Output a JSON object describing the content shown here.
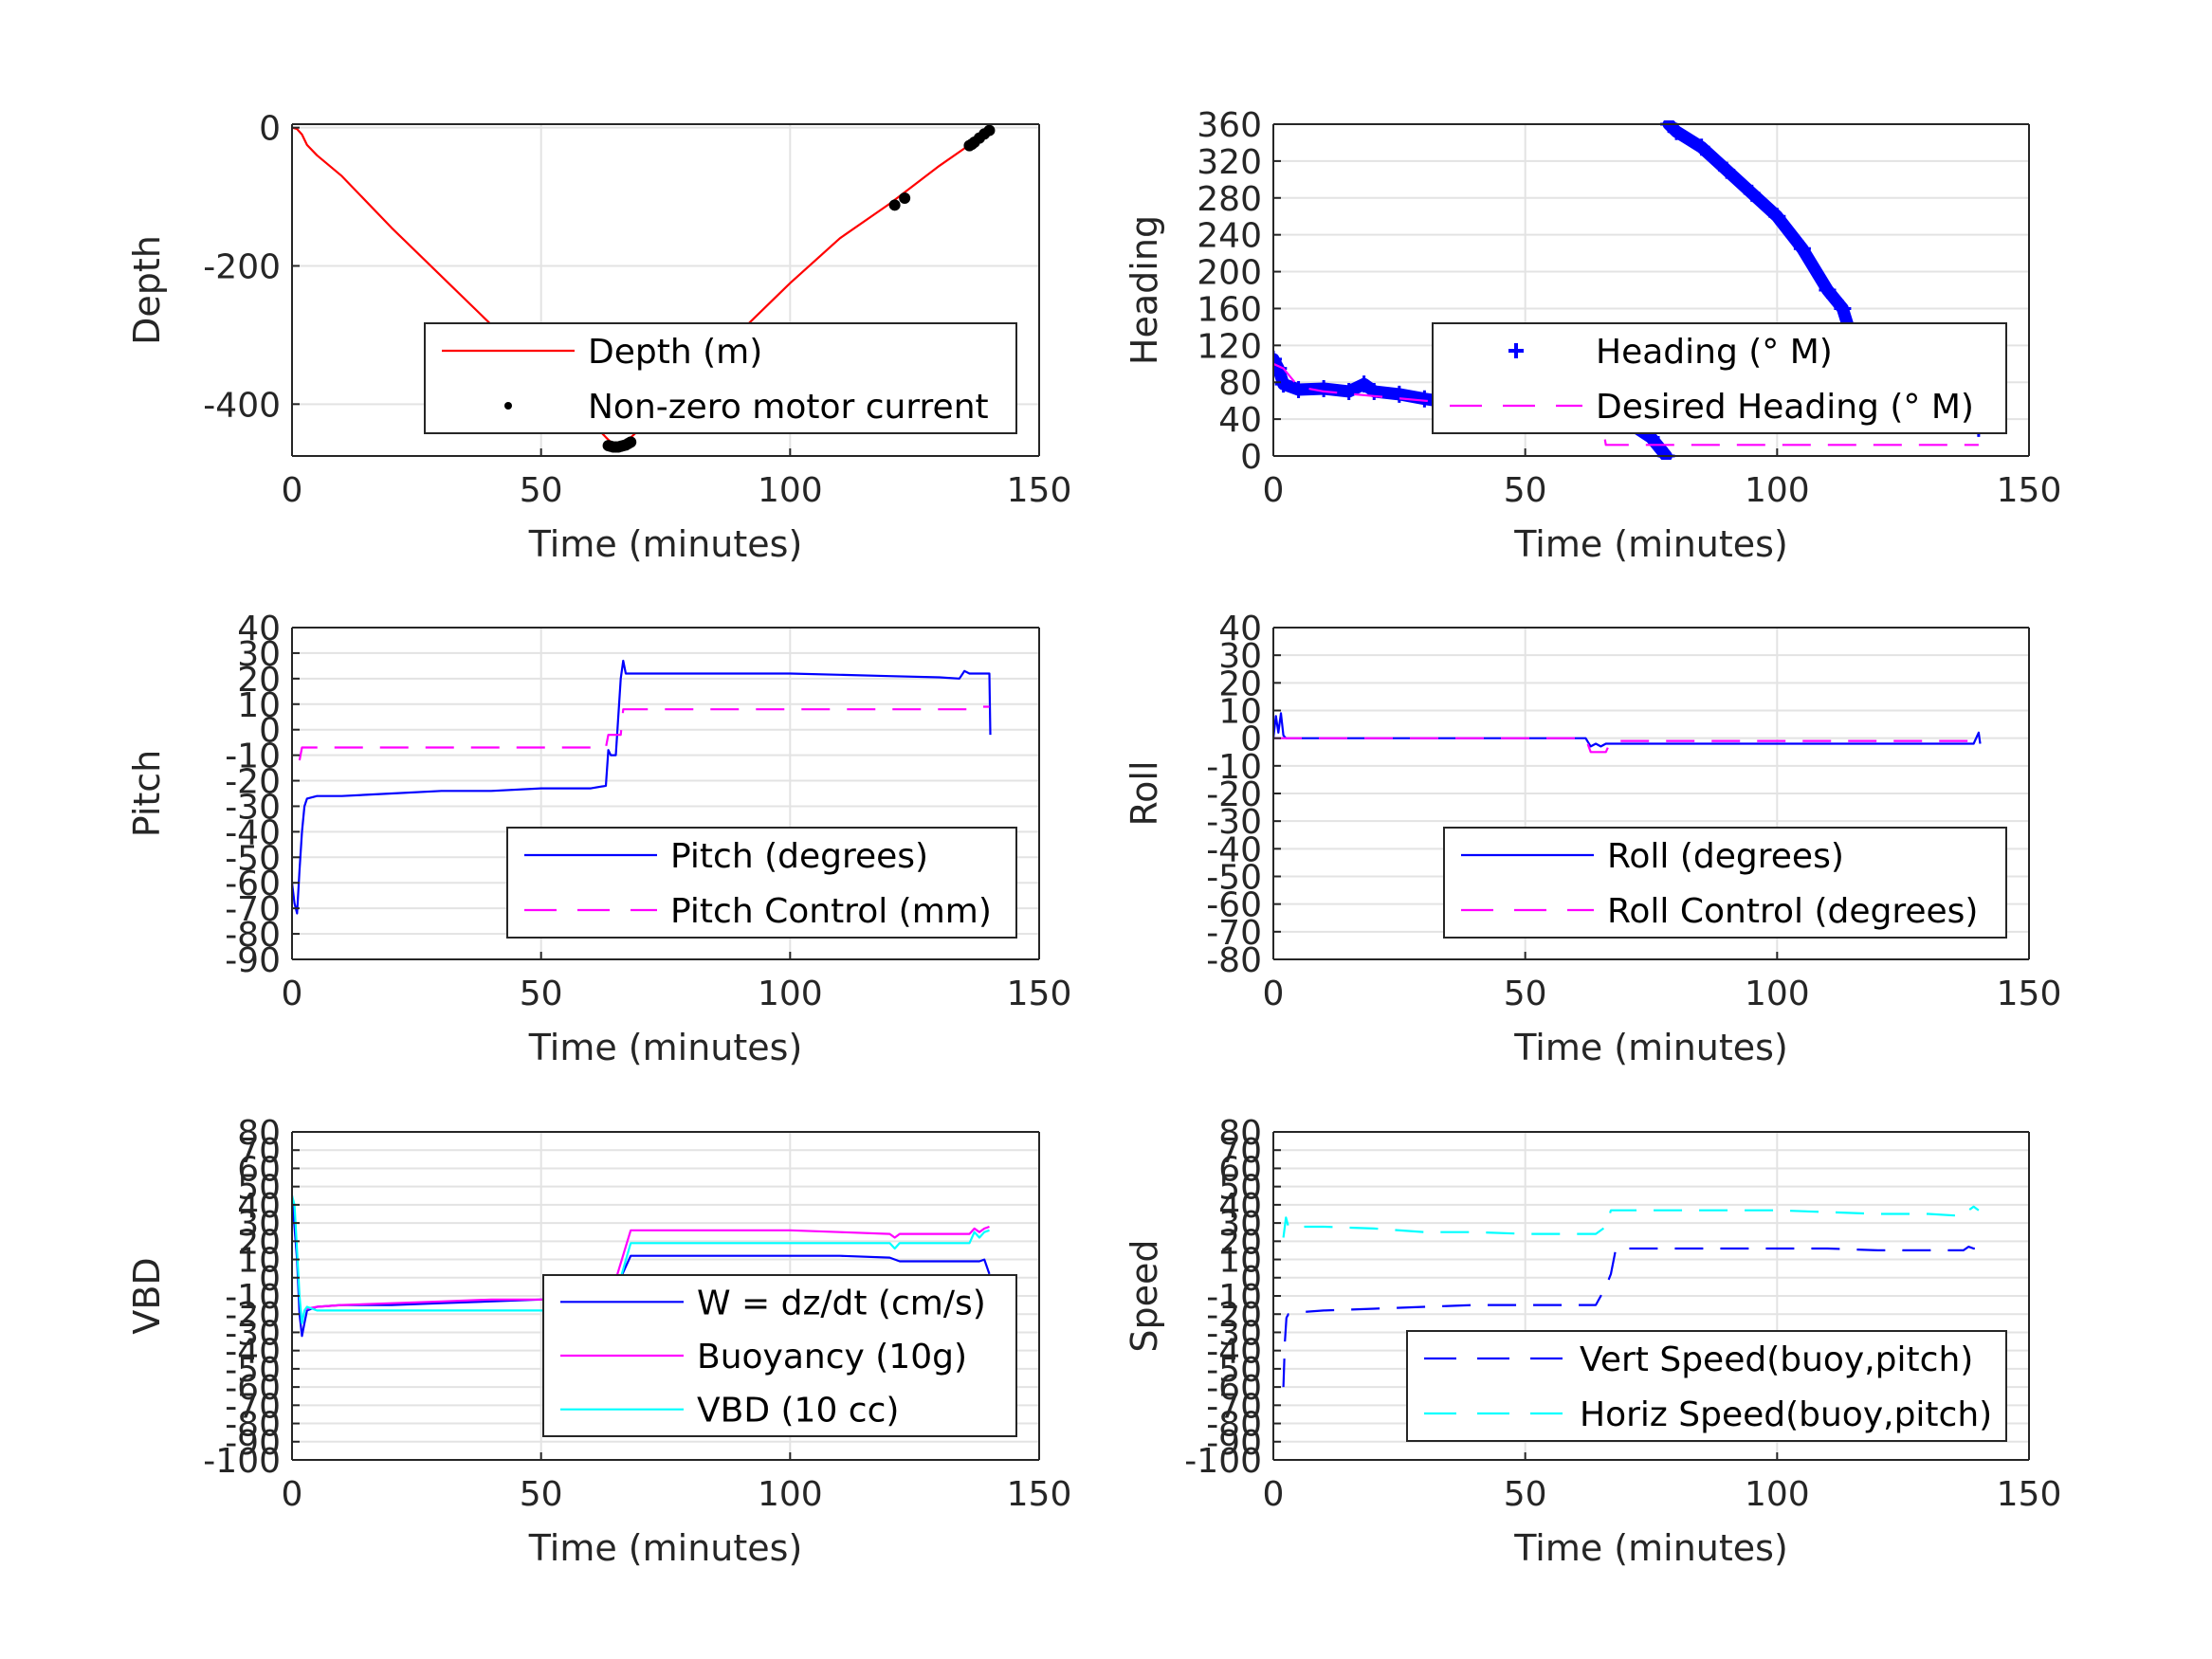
{
  "chart_data": [
    {
      "type": "line",
      "xlabel": "Time (minutes)",
      "ylabel": "Depth",
      "xlim": [
        0,
        150
      ],
      "ylim": [
        -475,
        5
      ],
      "xticks": [
        0,
        50,
        100,
        150
      ],
      "yticks": [
        -400,
        -200,
        0
      ],
      "ytick_labels": [
        "-400",
        "-200",
        "0"
      ],
      "grid": true,
      "legend": "bottom-right",
      "series": [
        {
          "name": "Depth (m)",
          "color": "#ff0000",
          "style": "solid",
          "x": [
            0,
            1,
            2,
            3,
            5,
            10,
            20,
            30,
            40,
            50,
            60,
            63,
            65,
            67,
            70,
            80,
            90,
            100,
            110,
            120,
            130,
            135,
            140
          ],
          "y": [
            0,
            -2,
            -10,
            -25,
            -40,
            -70,
            -145,
            -215,
            -285,
            -355,
            -425,
            -448,
            -462,
            -455,
            -435,
            -365,
            -295,
            -225,
            -160,
            -110,
            -55,
            -30,
            0
          ]
        },
        {
          "name": "Non-zero motor current",
          "color": "#000000",
          "style": "dots",
          "x": [
            63.5,
            64,
            64.5,
            65,
            65.5,
            66,
            66.5,
            67,
            67.5,
            68,
            121,
            123,
            136,
            136.5,
            137,
            138,
            139,
            140
          ],
          "y": [
            -460,
            -461,
            -462,
            -462,
            -462,
            -461,
            -460,
            -459,
            -457,
            -455,
            -112,
            -102,
            -26,
            -24,
            -21,
            -15,
            -9,
            -4
          ]
        }
      ]
    },
    {
      "type": "line",
      "xlabel": "Time (minutes)",
      "ylabel": "Heading",
      "xlim": [
        0,
        150
      ],
      "ylim": [
        0,
        360
      ],
      "xticks": [
        0,
        50,
        100,
        150
      ],
      "yticks": [
        0,
        40,
        80,
        120,
        160,
        200,
        240,
        280,
        320,
        360
      ],
      "ytick_labels": [
        "0",
        "40",
        "80",
        "120",
        "160",
        "200",
        "240",
        "280",
        "320",
        "360"
      ],
      "grid": true,
      "legend": "bottom-right",
      "series": [
        {
          "name": "Heading (° M)",
          "color": "#0000ff",
          "style": "plus",
          "x": [
            0,
            1,
            2,
            5,
            10,
            15,
            18,
            20,
            25,
            30,
            35,
            40,
            45,
            50,
            55,
            60,
            65,
            70,
            75,
            78,
            78.5,
            80,
            85,
            90,
            95,
            100,
            105,
            110,
            113,
            115,
            120,
            125,
            130,
            135,
            138,
            140
          ],
          "y": [
            105,
            95,
            78,
            72,
            73,
            70,
            78,
            70,
            67,
            62,
            58,
            54,
            52,
            50,
            46,
            48,
            44,
            38,
            20,
            0,
            360,
            352,
            335,
            310,
            285,
            260,
            225,
            180,
            160,
            125,
            108,
            95,
            80,
            55,
            35,
            30
          ]
        },
        {
          "name": "Desired Heading (° M)",
          "color": "#ff00ff",
          "style": "dashed",
          "x": [
            0,
            2,
            5,
            10,
            20,
            30,
            40,
            50,
            60,
            65,
            66,
            70,
            80,
            100,
            120,
            140
          ],
          "y": [
            100,
            95,
            75,
            70,
            65,
            60,
            55,
            55,
            50,
            45,
            12,
            12,
            12,
            12,
            12,
            12
          ]
        }
      ]
    },
    {
      "type": "line",
      "xlabel": "Time (minutes)",
      "ylabel": "Pitch",
      "xlim": [
        0,
        150
      ],
      "ylim": [
        -90,
        40
      ],
      "xticks": [
        0,
        50,
        100,
        150
      ],
      "yticks": [
        -90,
        -80,
        -70,
        -60,
        -50,
        -40,
        -30,
        -20,
        -10,
        0,
        10,
        20,
        30,
        40
      ],
      "ytick_labels": [
        "-90",
        "-80",
        "-70",
        "-60",
        "-50",
        "-40",
        "-30",
        "-20",
        "-10",
        "0",
        "10",
        "20",
        "30",
        "40"
      ],
      "grid": true,
      "legend": "bottom-right",
      "series": [
        {
          "name": "Pitch (degrees)",
          "color": "#0000ff",
          "style": "solid",
          "x": [
            0,
            0.5,
            1,
            1.5,
            2,
            2.5,
            3,
            5,
            10,
            20,
            30,
            40,
            50,
            60,
            63,
            63.5,
            64,
            65,
            66,
            66.5,
            67,
            70,
            80,
            90,
            100,
            110,
            120,
            130,
            134,
            135,
            136,
            138,
            140,
            140.2
          ],
          "y": [
            -60,
            -68,
            -72,
            -55,
            -40,
            -30,
            -27,
            -26,
            -26,
            -25,
            -24,
            -24,
            -23,
            -23,
            -22,
            -8,
            -10,
            -10,
            20,
            27,
            22,
            22,
            22,
            22,
            22,
            21.5,
            21,
            20.5,
            20,
            23,
            22,
            22,
            22,
            -2
          ]
        },
        {
          "name": "Pitch Control (mm)",
          "color": "#ff00ff",
          "style": "dashed",
          "x": [
            1.5,
            2,
            5,
            20,
            40,
            60,
            63,
            63.5,
            66,
            66.5,
            67,
            70,
            100,
            130,
            136,
            138,
            140
          ],
          "y": [
            -12,
            -7,
            -7,
            -7,
            -7,
            -7,
            -7,
            -2,
            -2,
            8,
            8,
            8,
            8,
            8,
            8,
            9,
            9
          ]
        }
      ]
    },
    {
      "type": "line",
      "xlabel": "Time (minutes)",
      "ylabel": "Roll",
      "xlim": [
        0,
        150
      ],
      "ylim": [
        -80,
        40
      ],
      "xticks": [
        0,
        50,
        100,
        150
      ],
      "yticks": [
        -80,
        -70,
        -60,
        -50,
        -40,
        -30,
        -20,
        -10,
        0,
        10,
        20,
        30,
        40
      ],
      "ytick_labels": [
        "-80",
        "-70",
        "-60",
        "-50",
        "-40",
        "-30",
        "-20",
        "-10",
        "0",
        "10",
        "20",
        "30",
        "40"
      ],
      "grid": true,
      "legend": "bottom-right",
      "series": [
        {
          "name": "Roll (degrees)",
          "color": "#0000ff",
          "style": "solid",
          "x": [
            0,
            0.5,
            1,
            1.5,
            2,
            2.5,
            3,
            10,
            30,
            50,
            62,
            63,
            64,
            65,
            66,
            67,
            70,
            100,
            130,
            139,
            140,
            140.3
          ],
          "y": [
            0,
            8,
            2,
            9,
            1,
            0,
            0,
            0,
            0,
            0,
            0,
            -3,
            -2,
            -3,
            -2,
            -2,
            -2,
            -2,
            -2,
            -2,
            2,
            -2
          ]
        },
        {
          "name": "Roll Control (degrees)",
          "color": "#ff00ff",
          "style": "dashed",
          "x": [
            0,
            10,
            30,
            50,
            62,
            63,
            66,
            67,
            100,
            130,
            140
          ],
          "y": [
            0,
            0,
            0,
            0,
            0,
            -5,
            -5,
            -1,
            -1,
            -1,
            -1
          ]
        }
      ]
    },
    {
      "type": "line",
      "xlabel": "Time (minutes)",
      "ylabel": "VBD",
      "xlim": [
        0,
        150
      ],
      "ylim": [
        -100,
        80
      ],
      "xticks": [
        0,
        50,
        100,
        150
      ],
      "yticks": [
        -100,
        -90,
        -80,
        -70,
        -60,
        -50,
        -40,
        -30,
        -20,
        -10,
        0,
        10,
        20,
        30,
        40,
        50,
        60,
        70,
        80
      ],
      "ytick_labels": [
        "-100",
        "-90",
        "-80",
        "-70",
        "-60",
        "-50",
        "-40",
        "-30",
        "-20",
        "-10",
        "0",
        "10",
        "20",
        "30",
        "40",
        "50",
        "60",
        "70",
        "80"
      ],
      "grid": true,
      "legend": "bottom-right",
      "series": [
        {
          "name": "W = dz/dt (cm/s)",
          "color": "#0000ff",
          "style": "solid",
          "x": [
            0,
            1,
            1.5,
            2,
            2.5,
            3,
            5,
            10,
            20,
            30,
            40,
            50,
            60,
            63,
            64,
            66,
            68,
            70,
            80,
            90,
            100,
            110,
            120,
            122,
            130,
            138,
            139,
            140
          ],
          "y": [
            45,
            10,
            -20,
            -32,
            -25,
            -18,
            -16,
            -15,
            -15,
            -14,
            -13,
            -12,
            -12,
            -12,
            -12,
            0,
            12,
            12,
            12,
            12,
            12,
            12,
            11,
            9,
            9,
            9,
            10,
            2
          ]
        },
        {
          "name": "Buoyancy (10g)",
          "color": "#ff00ff",
          "style": "solid",
          "x": [
            2.5,
            3,
            5,
            10,
            20,
            30,
            40,
            50,
            60,
            63,
            64,
            66,
            68,
            70,
            80,
            90,
            100,
            110,
            120,
            121,
            122,
            130,
            136,
            137,
            138,
            139,
            140
          ],
          "y": [
            -18,
            -17,
            -16,
            -15,
            -14,
            -13,
            -12,
            -12,
            -12,
            -12,
            -10,
            8,
            26,
            26,
            26,
            26,
            26,
            25,
            24,
            22,
            24,
            24,
            24,
            27,
            25,
            27,
            28
          ]
        },
        {
          "name": "VBD (10 cc)",
          "color": "#00ffff",
          "style": "solid",
          "x": [
            0,
            0.5,
            1,
            1.5,
            2,
            2.5,
            3,
            5,
            10,
            20,
            30,
            40,
            50,
            60,
            63,
            64,
            66,
            68,
            70,
            80,
            90,
            100,
            110,
            120,
            121,
            122,
            130,
            136,
            137,
            138,
            139,
            140
          ],
          "y": [
            45,
            40,
            15,
            -10,
            -25,
            -18,
            -16,
            -18,
            -18,
            -18,
            -18,
            -18,
            -18,
            -18,
            -18,
            -15,
            0,
            19,
            19,
            19,
            19,
            19,
            19,
            19,
            16,
            19,
            19,
            19,
            25,
            22,
            25,
            26
          ]
        }
      ]
    },
    {
      "type": "line",
      "xlabel": "Time (minutes)",
      "ylabel": "Speed",
      "xlim": [
        0,
        150
      ],
      "ylim": [
        -100,
        80
      ],
      "xticks": [
        0,
        50,
        100,
        150
      ],
      "yticks": [
        -100,
        -90,
        -80,
        -70,
        -60,
        -50,
        -40,
        -30,
        -20,
        -10,
        0,
        10,
        20,
        30,
        40,
        50,
        60,
        70,
        80
      ],
      "ytick_labels": [
        "-100",
        "-90",
        "-80",
        "-70",
        "-60",
        "-50",
        "-40",
        "-30",
        "-20",
        "-10",
        "0",
        "10",
        "20",
        "30",
        "40",
        "50",
        "60",
        "70",
        "80"
      ],
      "grid": true,
      "legend": "bottom-right",
      "series": [
        {
          "name": "Vert Speed(buoy,pitch)",
          "color": "#0000ff",
          "style": "dashed",
          "x": [
            2,
            2.3,
            2.6,
            3,
            5,
            10,
            20,
            30,
            40,
            50,
            60,
            63,
            64,
            66,
            67,
            68,
            70,
            80,
            90,
            100,
            110,
            120,
            130,
            136,
            137,
            138,
            139,
            140
          ],
          "y": [
            -60,
            -35,
            -22,
            -20,
            -19,
            -18,
            -17,
            -16,
            -15,
            -15,
            -15,
            -15,
            -15,
            -5,
            2,
            16,
            16,
            16,
            16,
            16,
            16,
            15,
            15,
            15,
            15,
            17,
            16,
            16
          ]
        },
        {
          "name": "Horiz Speed(buoy,pitch)",
          "color": "#00ffff",
          "style": "dashed",
          "x": [
            2,
            2.5,
            3,
            5,
            10,
            20,
            30,
            40,
            50,
            60,
            63,
            64,
            66,
            67,
            68,
            70,
            80,
            90,
            100,
            110,
            120,
            130,
            136,
            137,
            138,
            139,
            140
          ],
          "y": [
            22,
            33,
            28,
            28,
            28,
            27,
            25,
            25,
            24,
            24,
            24,
            24,
            28,
            37,
            37,
            37,
            37,
            37,
            37,
            36,
            35,
            35,
            34,
            34,
            37,
            39,
            37
          ]
        }
      ]
    }
  ]
}
